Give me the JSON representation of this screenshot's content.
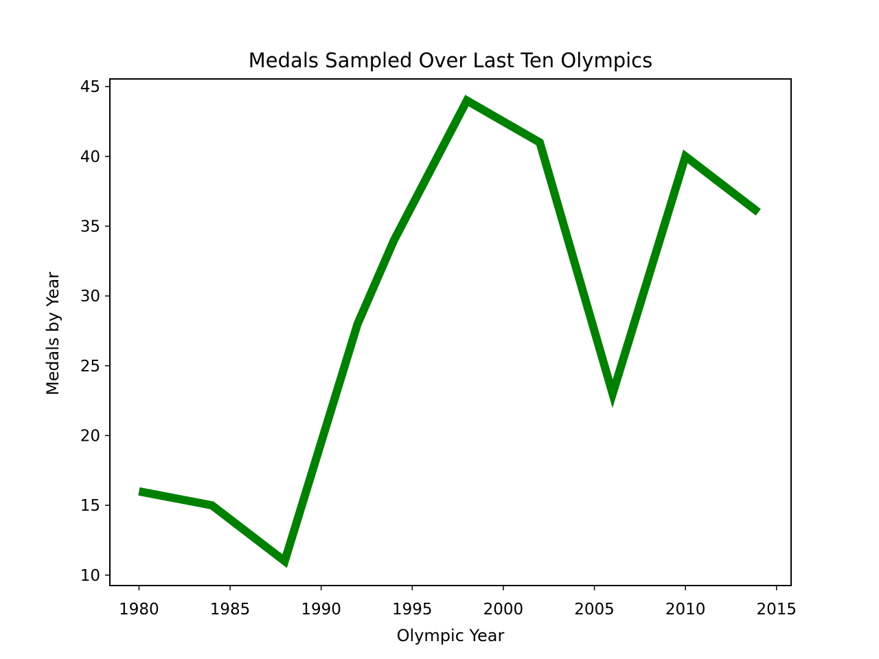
{
  "chart_data": {
    "type": "line",
    "title": "Medals Sampled Over Last Ten Olympics",
    "xlabel": "Olympic Year",
    "ylabel": "Medals by Year",
    "xlim": [
      1978.4,
      2015.8
    ],
    "ylim": [
      9.25,
      45.55
    ],
    "x_ticks": [
      1980,
      1985,
      1990,
      1995,
      2000,
      2005,
      2010,
      2015
    ],
    "y_ticks": [
      10,
      15,
      20,
      25,
      30,
      35,
      40,
      45
    ],
    "grid": false,
    "legend": "none",
    "series": [
      {
        "color": "#008000",
        "points": [
          {
            "x": 1980,
            "y": 16
          },
          {
            "x": 1984,
            "y": 15
          },
          {
            "x": 1988,
            "y": 11
          },
          {
            "x": 1992,
            "y": 28
          },
          {
            "x": 1994,
            "y": 34
          },
          {
            "x": 1998,
            "y": 44
          },
          {
            "x": 2002,
            "y": 41
          },
          {
            "x": 2006,
            "y": 23
          },
          {
            "x": 2010,
            "y": 40
          },
          {
            "x": 2014,
            "y": 36
          }
        ]
      }
    ]
  }
}
